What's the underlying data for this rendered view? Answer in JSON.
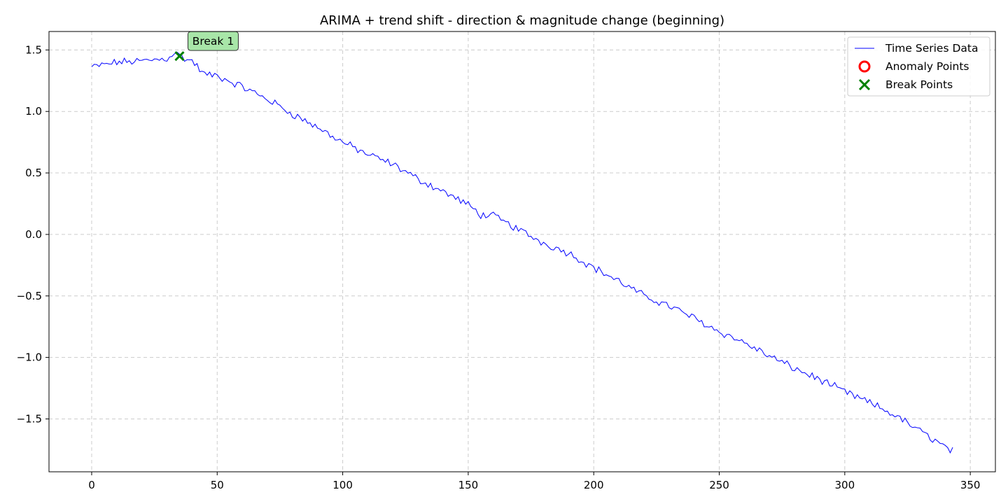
{
  "chart_data": {
    "type": "line",
    "title": "ARIMA + trend shift - direction & magnitude change (beginning)",
    "xlabel": "",
    "ylabel": "",
    "xlim": [
      -17,
      360
    ],
    "ylim": [
      -1.93,
      1.65
    ],
    "x_ticks": [
      0,
      50,
      100,
      150,
      200,
      250,
      300,
      350
    ],
    "y_ticks": [
      -1.5,
      -1.0,
      -0.5,
      0.0,
      0.5,
      1.0,
      1.5
    ],
    "x_tick_labels": [
      "0",
      "50",
      "100",
      "150",
      "200",
      "250",
      "300",
      "350"
    ],
    "y_tick_labels": [
      "−1.5",
      "−1.0",
      "−0.5",
      "0.0",
      "0.5",
      "1.0",
      "1.5"
    ],
    "grid": true,
    "legend_position": "top-right",
    "series": [
      {
        "name": "Time Series Data",
        "color": "#0000ff",
        "x_start": 0,
        "x_end": 343,
        "anchors": [
          [
            0,
            1.36
          ],
          [
            5,
            1.38
          ],
          [
            10,
            1.4
          ],
          [
            20,
            1.41
          ],
          [
            30,
            1.43
          ],
          [
            33,
            1.48
          ],
          [
            37,
            1.43
          ],
          [
            40,
            1.41
          ],
          [
            45,
            1.3
          ],
          [
            50,
            1.29
          ],
          [
            60,
            1.2
          ],
          [
            70,
            1.1
          ],
          [
            80,
            0.98
          ],
          [
            90,
            0.87
          ],
          [
            100,
            0.75
          ],
          [
            110,
            0.65
          ],
          [
            120,
            0.57
          ],
          [
            130,
            0.45
          ],
          [
            140,
            0.35
          ],
          [
            150,
            0.24
          ],
          [
            155,
            0.16
          ],
          [
            160,
            0.15
          ],
          [
            170,
            0.04
          ],
          [
            180,
            -0.07
          ],
          [
            190,
            -0.15
          ],
          [
            200,
            -0.27
          ],
          [
            210,
            -0.38
          ],
          [
            220,
            -0.5
          ],
          [
            230,
            -0.58
          ],
          [
            240,
            -0.68
          ],
          [
            250,
            -0.79
          ],
          [
            260,
            -0.88
          ],
          [
            270,
            -0.99
          ],
          [
            280,
            -1.09
          ],
          [
            290,
            -1.18
          ],
          [
            300,
            -1.28
          ],
          [
            310,
            -1.37
          ],
          [
            320,
            -1.47
          ],
          [
            330,
            -1.6
          ],
          [
            335,
            -1.66
          ],
          [
            340,
            -1.73
          ],
          [
            343,
            -1.76
          ]
        ],
        "noise_amplitude": 0.025
      }
    ],
    "anomaly_points": [],
    "break_points": [
      {
        "x": 35,
        "y": 1.45,
        "label": "Break 1"
      }
    ],
    "legend": [
      {
        "label": "Time Series Data",
        "kind": "line",
        "color": "#0000ff"
      },
      {
        "label": "Anomaly Points",
        "kind": "circle",
        "color": "#ff0000"
      },
      {
        "label": "Break Points",
        "kind": "x",
        "color": "#008000"
      }
    ],
    "colors": {
      "grid": "#cccccc",
      "annotation_fill": "#a8e6a8"
    }
  }
}
